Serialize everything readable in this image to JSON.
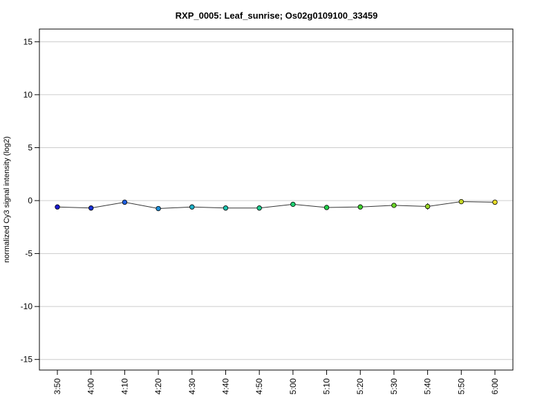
{
  "chart_data": {
    "type": "line",
    "title": "RXP_0005: Leaf_sunrise; Os02g0109100_33459",
    "xlabel": "",
    "ylabel": "normalized Cy3 signal intensity (log2)",
    "ylim": [
      -16,
      16.2
    ],
    "yticks": [
      -15,
      -10,
      -5,
      0,
      5,
      10,
      15
    ],
    "grid": "horizontal",
    "legend": "none",
    "categories": [
      "3:50",
      "4:00",
      "4:10",
      "4:20",
      "4:30",
      "4:40",
      "4:50",
      "5:00",
      "5:10",
      "5:20",
      "5:30",
      "5:40",
      "5:50",
      "6:00"
    ],
    "series": [
      {
        "values": [
          -0.6,
          -0.7,
          -0.15,
          -0.75,
          -0.6,
          -0.7,
          -0.7,
          -0.35,
          -0.65,
          -0.6,
          -0.45,
          -0.55,
          -0.1,
          -0.15
        ],
        "error": [
          0.15,
          0.1,
          0.1,
          0.1,
          0.1,
          0.1,
          0.1,
          0.1,
          0.1,
          0.1,
          0.1,
          0.3,
          0.1,
          0.1
        ]
      }
    ],
    "point_colors": [
      "#1a1ad0",
      "#1a33d6",
      "#1f5fe0",
      "#1f8fd8",
      "#1fb0c8",
      "#1fc4b0",
      "#1fcc8f",
      "#1fd070",
      "#22d04a",
      "#40d230",
      "#6ad428",
      "#9ad428",
      "#c8d828",
      "#e8dc28"
    ],
    "line_color": "#333333",
    "grid_color": "#cccccc"
  }
}
